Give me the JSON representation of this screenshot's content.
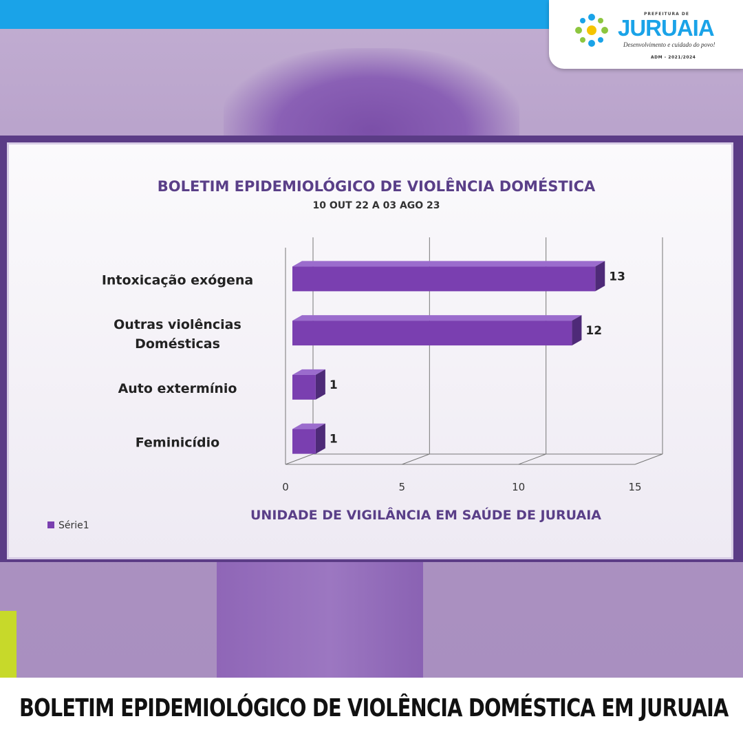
{
  "header": {
    "logo": {
      "prefix": "PREFEITURA DE",
      "name": "JURUAIA",
      "tagline": "Desenvolvimento e cuidado do povo!",
      "term": "ADM - 2021/2024",
      "colors": {
        "blue": "#1aa3e8",
        "green": "#8dc63f",
        "yellow": "#f5c400"
      }
    }
  },
  "chart_data": {
    "type": "bar",
    "orientation": "horizontal",
    "title": "BOLETIM EPIDEMIOLÓGICO DE VIOLÊNCIA DOMÉSTICA",
    "subtitle": "10 OUT 22 A 03 AGO 23",
    "categories": [
      "Intoxicação exógena",
      "Outras violências Domésticas",
      "Auto extermínio",
      "Feminicídio"
    ],
    "category_lines": [
      [
        "Intoxicação exógena"
      ],
      [
        "Outras violências",
        "Domésticas"
      ],
      [
        "Auto extermínio"
      ],
      [
        "Feminicídio"
      ]
    ],
    "series": [
      {
        "name": "Série1",
        "values": [
          13,
          12,
          1,
          1
        ],
        "color": "#7a3fb0"
      }
    ],
    "data_labels": [
      "13",
      "12",
      "1",
      "1"
    ],
    "xlim": [
      0,
      15
    ],
    "x_ticks": [
      0,
      5,
      10,
      15
    ],
    "x_tick_labels": [
      "0",
      "5",
      "10",
      "15"
    ],
    "grid": true,
    "style": "3d",
    "legend": {
      "position": "bottom-left",
      "label": "Série1"
    },
    "footer": "UNIDADE DE VIGILÂNCIA EM SAÚDE DE JURUAIA"
  },
  "bottom_banner": {
    "title": "BOLETIM EPIDEMIOLÓGICO DE VIOLÊNCIA DOMÉSTICA EM JURUAIA",
    "accent": "#c7d92a"
  }
}
